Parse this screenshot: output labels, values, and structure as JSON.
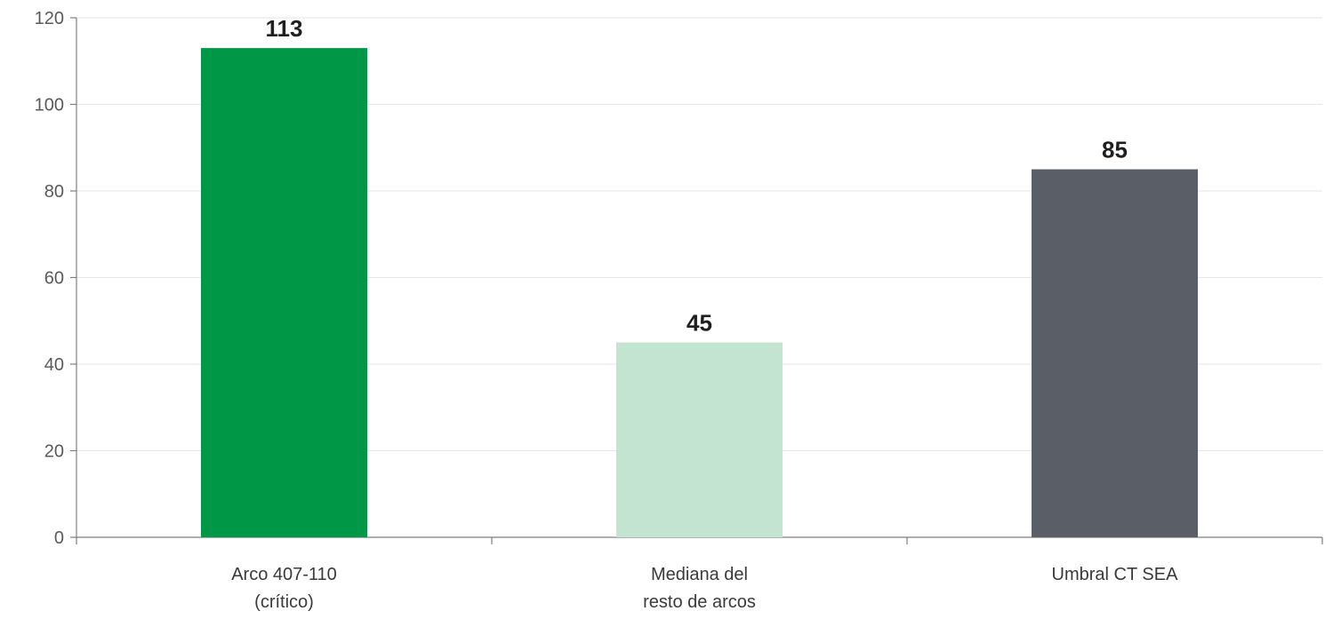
{
  "chart_data": {
    "type": "bar",
    "categories": [
      [
        "Arco 407-110",
        "(crítico)"
      ],
      [
        "Mediana del",
        "resto de arcos"
      ],
      [
        "Umbral CT SEA"
      ]
    ],
    "values": [
      113,
      45,
      85
    ],
    "data_labels": [
      "113",
      "45",
      "85"
    ],
    "bar_colors": [
      "#009846",
      "#c2e4d0",
      "#5a5e66"
    ],
    "ylim": [
      0,
      120
    ],
    "yticks": [
      0,
      20,
      40,
      60,
      80,
      100,
      120
    ],
    "grid": true,
    "grid_color": "#e6e6e6",
    "axis_color": "#7f7f7f",
    "legend": false
  }
}
